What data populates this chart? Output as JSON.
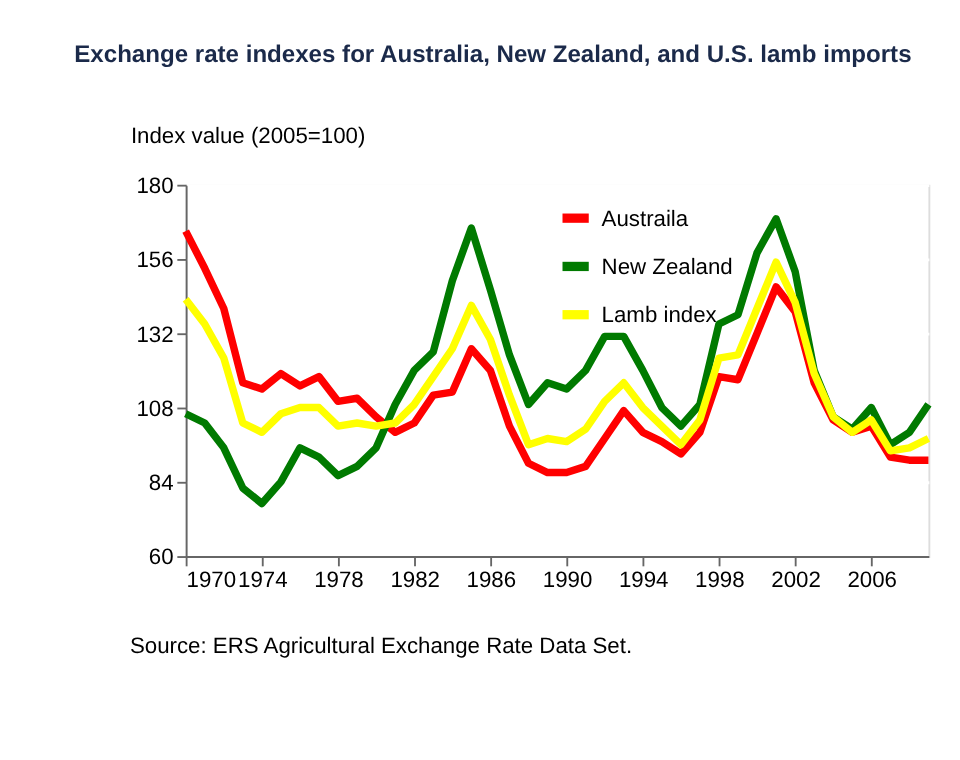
{
  "chart_data": {
    "type": "line",
    "title": "Exchange rate indexes for Australia, New Zealand, and U.S. lamb imports",
    "ylabel": "Index value (2005=100)",
    "annotations": [
      "Source: ERS Agricultural Exchange Rate Data Set."
    ],
    "x": [
      1970,
      1971,
      1972,
      1973,
      1974,
      1975,
      1976,
      1977,
      1978,
      1979,
      1980,
      1981,
      1982,
      1983,
      1984,
      1985,
      1986,
      1987,
      1988,
      1989,
      1990,
      1991,
      1992,
      1993,
      1994,
      1995,
      1996,
      1997,
      1998,
      1999,
      2000,
      2001,
      2002,
      2003,
      2004,
      2005,
      2006,
      2007,
      2008,
      2009
    ],
    "series": [
      {
        "name": "Austraila",
        "color": "#ff0000",
        "values": [
          165,
          153,
          140,
          116,
          114,
          119,
          115,
          118,
          110,
          111,
          105,
          100,
          103,
          112,
          113,
          127,
          120,
          102,
          90,
          87,
          87,
          89,
          98,
          107,
          100,
          97,
          93,
          100,
          118,
          117,
          132,
          147,
          139,
          116,
          104,
          100,
          102,
          92,
          91,
          91
        ]
      },
      {
        "name": "New Zealand",
        "color": "#007a00",
        "values": [
          106,
          103,
          95,
          82,
          77,
          84,
          95,
          92,
          86,
          89,
          95,
          109,
          120,
          126,
          149,
          166,
          146,
          125,
          109,
          116,
          114,
          120,
          131,
          131,
          120,
          108,
          102,
          109,
          135,
          138,
          158,
          169,
          152,
          120,
          105,
          101,
          108,
          96,
          100,
          109
        ]
      },
      {
        "name": "Lamb index",
        "color": "#ffff00",
        "values": [
          143,
          135,
          124,
          103,
          100,
          106,
          108,
          108,
          102,
          103,
          102,
          103,
          109,
          118,
          127,
          141,
          130,
          112,
          96,
          98,
          97,
          101,
          110,
          116,
          108,
          102,
          96,
          104,
          124,
          125,
          140,
          155,
          142,
          119,
          105,
          100,
          104,
          94,
          95,
          98
        ]
      }
    ],
    "xlim": [
      1970,
      2009
    ],
    "xticks": [
      1970,
      1974,
      1978,
      1982,
      1986,
      1990,
      1994,
      1998,
      2002,
      2006
    ],
    "ylim": [
      60,
      180
    ],
    "yticks": [
      60,
      84,
      108,
      132,
      156,
      180
    ],
    "grid": "y",
    "legend": "top",
    "marker": "none",
    "line_style": "solid"
  }
}
